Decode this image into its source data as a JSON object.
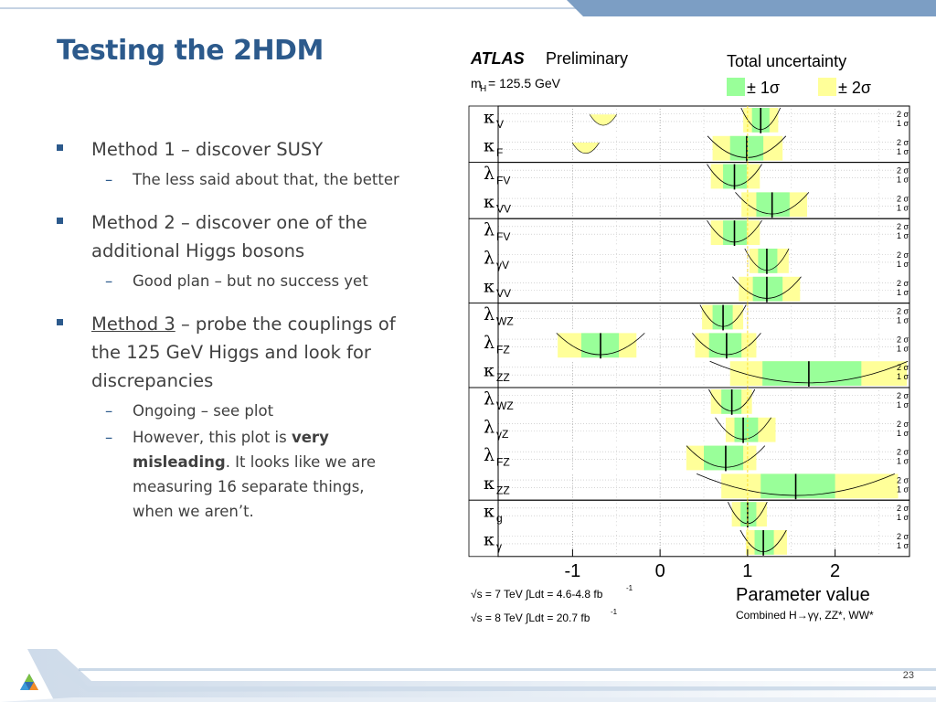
{
  "slide": {
    "title": "Testing the 2HDM",
    "page_number": "23"
  },
  "bullets": {
    "m1": "Method 1 – discover SUSY",
    "m1_sub": "The less said about that, the better",
    "m2": "Method 2 – discover one of the additional Higgs bosons",
    "m2_sub": "Good plan – but no success yet",
    "m3_link": "Method 3",
    "m3_rest": " – probe the couplings of the 125 GeV Higgs and look for discrepancies",
    "m3_sub1": "Ongoing – see plot",
    "m3_sub2_a": "However, this plot is ",
    "m3_sub2_bold": "very misleading",
    "m3_sub2_b": ".  It looks like we are measuring 16 separate things, when we aren’t."
  },
  "chart_data": {
    "type": "scatter",
    "atlas": "ATLAS",
    "preliminary": "Preliminary",
    "mass_label": "m",
    "mass_sub": "H",
    "mass_value": " = 125.5 GeV",
    "legend_title": "Total uncertainty",
    "legend_1sigma": "± 1σ",
    "legend_2sigma": "± 2σ",
    "xlabel": "Parameter value",
    "combined": "Combined H→γγ, ZZ*, WW*",
    "lumi_7": "√s = 7 TeV ∫Ldt = 4.6-4.8 fb",
    "lumi_7_sup": "-1",
    "lumi_8": "√s = 8 TeV ∫Ldt = 20.7 fb",
    "lumi_8_sup": "-1",
    "xlim": [
      -1.85,
      2.85
    ],
    "x_ticks": [
      -1,
      0,
      1,
      2
    ],
    "x_tick_labels": [
      "-1",
      "0",
      "1",
      "2"
    ],
    "sigma_2_label": "2 σ",
    "sigma_1_label": "1 σ",
    "colors": {
      "one_sigma": "#99ff99",
      "two_sigma": "#ffff99",
      "line": "#000000",
      "sm_line": "#ffe033"
    },
    "groups": [
      {
        "rows": [
          {
            "sym": "κ",
            "sub": "V",
            "best": 1.15,
            "s1": [
              1.05,
              1.25
            ],
            "s2": [
              0.95,
              1.35
            ],
            "extra": [
              -0.7,
              -0.6
            ]
          },
          {
            "sym": "κ",
            "sub": "F",
            "best": 0.99,
            "s1": [
              0.8,
              1.18
            ],
            "s2": [
              0.6,
              1.4
            ],
            "extra": [
              -0.9,
              -0.8
            ]
          }
        ]
      },
      {
        "rows": [
          {
            "sym": "λ",
            "sub": "FV",
            "best": 0.85,
            "s1": [
              0.72,
              0.99
            ],
            "s2": [
              0.58,
              1.14
            ]
          },
          {
            "sym": "κ",
            "sub": "VV",
            "best": 1.28,
            "s1": [
              1.1,
              1.48
            ],
            "s2": [
              0.93,
              1.68
            ]
          }
        ]
      },
      {
        "rows": [
          {
            "sym": "λ",
            "sub": "FV",
            "best": 0.85,
            "s1": [
              0.72,
              0.99
            ],
            "s2": [
              0.58,
              1.14
            ]
          },
          {
            "sym": "λ",
            "sub": "γV",
            "best": 1.22,
            "s1": [
              1.12,
              1.34
            ],
            "s2": [
              1.02,
              1.47
            ]
          },
          {
            "sym": "κ",
            "sub": "VV",
            "best": 1.22,
            "s1": [
              1.06,
              1.4
            ],
            "s2": [
              0.9,
              1.6
            ]
          }
        ]
      },
      {
        "rows": [
          {
            "sym": "λ",
            "sub": "WZ",
            "best": 0.72,
            "s1": [
              0.6,
              0.83
            ],
            "s2": [
              0.48,
              0.95
            ]
          },
          {
            "sym": "λ",
            "sub": "FZ",
            "best": -0.68,
            "s1": [
              -0.9,
              -0.47
            ],
            "s2": [
              -1.17,
              -0.27
            ],
            "best2": 0.76,
            "s1b": [
              0.56,
              0.93
            ],
            "s2b": [
              0.4,
              1.1
            ]
          },
          {
            "sym": "κ",
            "sub": "ZZ",
            "best": 1.7,
            "s1": [
              1.17,
              2.3
            ],
            "s2": [
              0.8,
              2.82
            ]
          }
        ]
      },
      {
        "rows": [
          {
            "sym": "λ",
            "sub": "WZ",
            "best": 0.82,
            "s1": [
              0.7,
              0.93
            ],
            "s2": [
              0.58,
              1.05
            ]
          },
          {
            "sym": "λ",
            "sub": "γZ",
            "best": 0.95,
            "s1": [
              0.85,
              1.12
            ],
            "s2": [
              0.75,
              1.32
            ]
          },
          {
            "sym": "λ",
            "sub": "FZ",
            "best": 0.75,
            "s1": [
              0.5,
              0.95
            ],
            "s2": [
              0.3,
              1.1
            ]
          },
          {
            "sym": "κ",
            "sub": "ZZ",
            "best": 1.55,
            "s1": [
              1.15,
              2.0
            ],
            "s2": [
              0.7,
              2.72
            ]
          }
        ]
      },
      {
        "rows": [
          {
            "sym": "κ",
            "sub": "g",
            "best": 1.0,
            "s1": [
              0.92,
              1.1
            ],
            "s2": [
              0.82,
              1.22
            ]
          },
          {
            "sym": "κ",
            "sub": "γ",
            "best": 1.18,
            "s1": [
              1.08,
              1.3
            ],
            "s2": [
              0.98,
              1.45
            ]
          }
        ]
      }
    ]
  }
}
